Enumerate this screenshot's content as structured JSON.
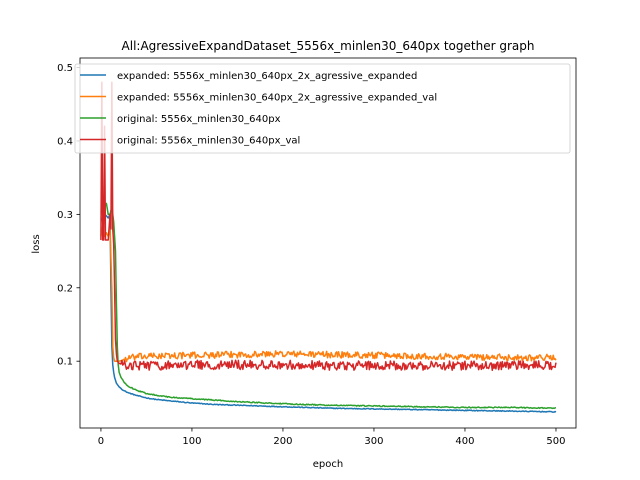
{
  "chart_data": {
    "type": "line",
    "title": "All:AgressiveExpandDataset_5556x_minlen30_640px together graph",
    "xlabel": "epoch",
    "ylabel": "loss",
    "xlim": [
      -23,
      522
    ],
    "ylim": [
      0.009,
      0.513
    ],
    "xticks": [
      0,
      100,
      200,
      300,
      400,
      500
    ],
    "yticks": [
      0.1,
      0.2,
      0.3,
      0.4,
      0.5
    ],
    "grid": false,
    "legend_position": "top-left",
    "series": [
      {
        "name": "expanded: 5556x_minlen30_640px_2x_agressive_expanded",
        "color": "#1f77b4",
        "x": [
          0,
          2,
          4,
          6,
          8,
          10,
          11,
          12,
          13,
          14,
          15,
          17,
          20,
          25,
          30,
          40,
          50,
          60,
          75,
          100,
          125,
          150,
          200,
          250,
          300,
          350,
          400,
          450,
          500
        ],
        "y": [
          0.295,
          0.29,
          0.3,
          0.298,
          0.295,
          0.3,
          0.2,
          0.12,
          0.095,
          0.085,
          0.078,
          0.07,
          0.065,
          0.06,
          0.057,
          0.053,
          0.05,
          0.048,
          0.046,
          0.043,
          0.041,
          0.04,
          0.038,
          0.036,
          0.035,
          0.034,
          0.033,
          0.032,
          0.031
        ],
        "noise": 0.0004
      },
      {
        "name": "expanded: 5556x_minlen30_640px_2x_agressive_expanded_val",
        "color": "#ff7f0e",
        "x": [
          0,
          2,
          4,
          6,
          8,
          10,
          12,
          13,
          14,
          15,
          17,
          20,
          25,
          30,
          40,
          60,
          100,
          150,
          200,
          250,
          300,
          350,
          400,
          450,
          500
        ],
        "y": [
          0.27,
          0.285,
          0.27,
          0.275,
          0.27,
          0.28,
          0.2,
          0.12,
          0.105,
          0.1,
          0.1,
          0.1,
          0.102,
          0.104,
          0.106,
          0.107,
          0.108,
          0.109,
          0.11,
          0.109,
          0.108,
          0.107,
          0.106,
          0.105,
          0.105
        ],
        "noise": 0.0032
      },
      {
        "name": "original: 5556x_minlen30_640px",
        "color": "#2ca02c",
        "x": [
          0,
          2,
          4,
          6,
          8,
          10,
          12,
          14,
          16,
          17,
          18,
          19,
          20,
          22,
          25,
          30,
          40,
          50,
          60,
          75,
          100,
          150,
          200,
          250,
          300,
          350,
          400,
          450,
          500
        ],
        "y": [
          0.305,
          0.3,
          0.31,
          0.315,
          0.3,
          0.3,
          0.31,
          0.29,
          0.25,
          0.18,
          0.12,
          0.095,
          0.085,
          0.078,
          0.072,
          0.066,
          0.06,
          0.056,
          0.054,
          0.051,
          0.049,
          0.045,
          0.042,
          0.04,
          0.039,
          0.038,
          0.037,
          0.037,
          0.036
        ],
        "noise": 0.0005
      },
      {
        "name": "original: 5556x_minlen30_640px_val",
        "color": "#d62728",
        "x": [
          0,
          1,
          2,
          3,
          4,
          5,
          6,
          8,
          10,
          11,
          12,
          13,
          14,
          15,
          16,
          17,
          18,
          20,
          25,
          30,
          40,
          60,
          100,
          150,
          200,
          250,
          300,
          350,
          400,
          450,
          500
        ],
        "y": [
          0.265,
          0.48,
          0.265,
          0.265,
          0.42,
          0.265,
          0.265,
          0.265,
          0.3,
          0.28,
          0.48,
          0.28,
          0.26,
          0.2,
          0.13,
          0.11,
          0.1,
          0.097,
          0.095,
          0.095,
          0.094,
          0.094,
          0.095,
          0.095,
          0.095,
          0.094,
          0.094,
          0.094,
          0.094,
          0.094,
          0.095
        ],
        "noise": 0.0045
      }
    ]
  }
}
